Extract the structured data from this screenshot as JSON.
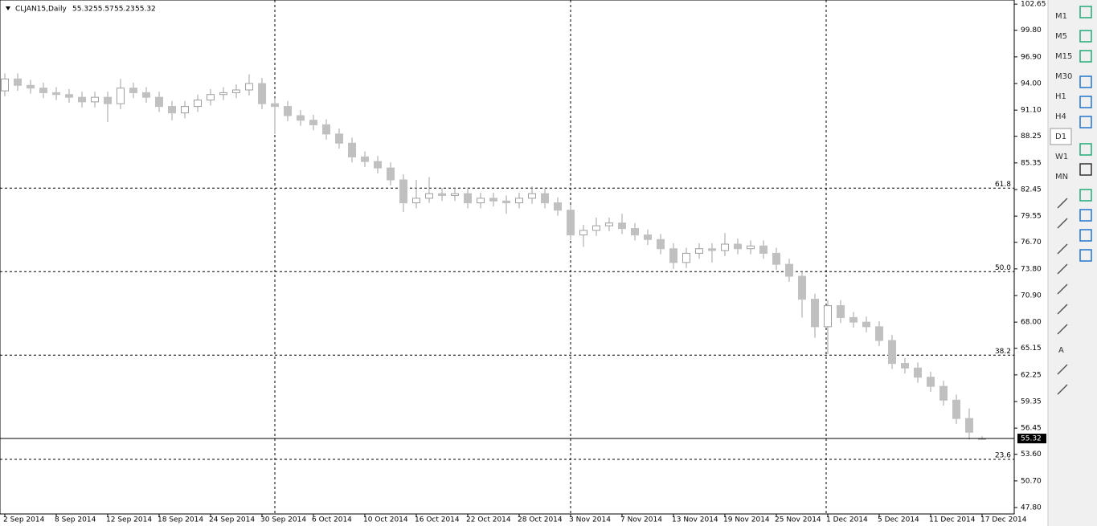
{
  "chart_data": {
    "type": "candlestick",
    "title": "CLJAN15,Daily",
    "categories": [
      "2 Sep 2014",
      null,
      null,
      null,
      "8 Sep 2014",
      null,
      null,
      null,
      "12 Sep 2014",
      null,
      null,
      null,
      "18 Sep 2014",
      null,
      null,
      null,
      "24 Sep 2014",
      null,
      null,
      null,
      "30 Sep 2014",
      null,
      null,
      null,
      "6 Oct 2014",
      null,
      null,
      null,
      "10 Oct 2014",
      null,
      null,
      null,
      "16 Oct 2014",
      null,
      null,
      null,
      "22 Oct 2014",
      null,
      null,
      null,
      "28 Oct 2014",
      null,
      null,
      null,
      "3 Nov 2014",
      null,
      null,
      null,
      "7 Nov 2014",
      null,
      null,
      null,
      "13 Nov 2014",
      null,
      null,
      null,
      "19 Nov 2014",
      null,
      null,
      null,
      "25 Nov 2014",
      null,
      null,
      null,
      "1 Dec 2014",
      null,
      null,
      null,
      "5 Dec 2014",
      null,
      null,
      null,
      "11 Dec 2014",
      null,
      null,
      null,
      "17 Dec 2014"
    ],
    "open": [
      93.2,
      94.5,
      93.8,
      93.5,
      93.0,
      92.8,
      92.5,
      92.0,
      92.5,
      91.8,
      93.5,
      93.0,
      92.5,
      91.5,
      90.8,
      91.5,
      92.2,
      92.8,
      93.0,
      93.3,
      94.0,
      91.8,
      91.5,
      90.5,
      90.0,
      89.5,
      88.5,
      87.5,
      86.0,
      85.5,
      84.8,
      83.5,
      81.0,
      81.5,
      82.0,
      81.8,
      82.0,
      81.0,
      81.5,
      81.2,
      81.0,
      81.5,
      82.0,
      81.0,
      80.2,
      77.5,
      78.0,
      78.5,
      78.8,
      78.2,
      77.5,
      77.0,
      76.0,
      74.5,
      75.5,
      76.0,
      75.8,
      76.5,
      76.0,
      76.3,
      75.5,
      74.3,
      73.0,
      70.5,
      67.5,
      69.8,
      68.5,
      68.0,
      67.5,
      66.0,
      63.5,
      63.0,
      62.0,
      61.0,
      59.5,
      57.5,
      55.32
    ],
    "high": [
      95.1,
      95.1,
      94.4,
      94.1,
      93.6,
      93.4,
      93.1,
      93.1,
      93.1,
      94.5,
      94.1,
      93.6,
      93.1,
      92.1,
      92.1,
      92.8,
      93.4,
      93.6,
      93.9,
      95.0,
      94.6,
      92.4,
      92.1,
      91.1,
      90.6,
      90.1,
      89.1,
      88.1,
      86.6,
      86.1,
      85.4,
      84.1,
      83.5,
      83.8,
      82.6,
      82.6,
      82.6,
      82.1,
      82.1,
      81.8,
      82.1,
      82.8,
      82.6,
      81.6,
      80.8,
      78.6,
      79.4,
      79.4,
      79.8,
      78.8,
      78.1,
      77.6,
      76.6,
      76.1,
      76.6,
      76.6,
      77.7,
      77.1,
      76.9,
      76.9,
      76.1,
      74.9,
      73.6,
      71.1,
      70.4,
      70.4,
      69.1,
      68.6,
      68.1,
      66.6,
      64.1,
      63.6,
      62.6,
      61.6,
      60.1,
      58.6,
      55.57
    ],
    "low": [
      92.6,
      93.2,
      92.9,
      92.4,
      92.2,
      91.9,
      91.4,
      91.4,
      89.8,
      91.2,
      92.4,
      91.9,
      90.9,
      90.0,
      90.2,
      90.9,
      91.6,
      92.2,
      92.4,
      92.7,
      91.2,
      88.5,
      89.9,
      89.4,
      88.9,
      87.9,
      86.9,
      85.4,
      84.9,
      84.2,
      82.9,
      80.0,
      80.4,
      81.0,
      81.2,
      81.2,
      80.4,
      80.4,
      80.6,
      79.8,
      80.4,
      80.9,
      80.4,
      79.6,
      76.9,
      76.2,
      77.4,
      77.9,
      77.6,
      76.9,
      76.4,
      75.4,
      73.8,
      73.9,
      74.9,
      74.5,
      75.2,
      75.4,
      75.4,
      74.9,
      73.7,
      72.4,
      68.5,
      66.3,
      64.5,
      67.9,
      67.4,
      66.9,
      65.4,
      62.9,
      62.4,
      61.4,
      60.4,
      58.9,
      56.9,
      55.2,
      55.23
    ],
    "close": [
      94.5,
      93.8,
      93.5,
      93.0,
      92.8,
      92.5,
      92.0,
      92.5,
      91.8,
      93.5,
      93.0,
      92.5,
      91.5,
      90.8,
      91.5,
      92.2,
      92.8,
      93.0,
      93.3,
      94.0,
      91.8,
      91.5,
      90.5,
      90.0,
      89.5,
      88.5,
      87.5,
      86.0,
      85.5,
      84.8,
      83.5,
      81.0,
      81.5,
      82.0,
      81.8,
      82.0,
      81.0,
      81.5,
      81.2,
      81.0,
      81.5,
      82.0,
      81.0,
      80.2,
      77.5,
      78.0,
      78.5,
      78.8,
      78.2,
      77.5,
      77.0,
      76.0,
      74.5,
      75.5,
      76.0,
      75.8,
      76.5,
      76.0,
      76.3,
      75.5,
      74.3,
      73.0,
      70.5,
      67.5,
      69.8,
      68.5,
      68.0,
      67.5,
      66.0,
      63.5,
      63.0,
      62.0,
      61.0,
      59.5,
      57.5,
      56.0,
      55.32
    ],
    "ylim": [
      47.1,
      103.1
    ],
    "yticks": [
      102.65,
      {
        "value": 99.8,
        "label": "99.80"
      },
      {
        "value": 96.9,
        "label": "96.90"
      },
      {
        "value": 94.0,
        "label": "94.00"
      },
      {
        "value": 91.1,
        "label": "91.10"
      },
      88.25,
      85.35,
      82.45,
      79.55,
      {
        "value": 76.7,
        "label": "76.70"
      },
      {
        "value": 73.8,
        "label": "73.80"
      },
      {
        "value": 70.9,
        "label": "70.90"
      },
      {
        "value": 68.0,
        "label": "68.00"
      },
      65.15,
      62.25,
      59.35,
      56.45,
      {
        "value": 53.6,
        "label": "53.60"
      },
      {
        "value": 50.7,
        "label": "50.70"
      },
      {
        "value": 47.8,
        "label": "47.80"
      }
    ],
    "fib_levels": [
      {
        "label": "61.8",
        "value": 82.6
      },
      {
        "label": "50.0",
        "value": 73.5
      },
      {
        "label": "38.2",
        "value": 64.4
      },
      {
        "label": "23.6",
        "value": 53.05
      }
    ],
    "bull_color": "#ffffff",
    "bear_color": "#c0c0c0",
    "wick_color": "#a0a0a0"
  },
  "toolbar": {
    "timeframes": [
      "M1",
      "M5",
      "M15",
      "M30",
      "H1",
      "H4",
      "D1",
      "W1",
      "MN"
    ],
    "text_tool": "A"
  }
}
